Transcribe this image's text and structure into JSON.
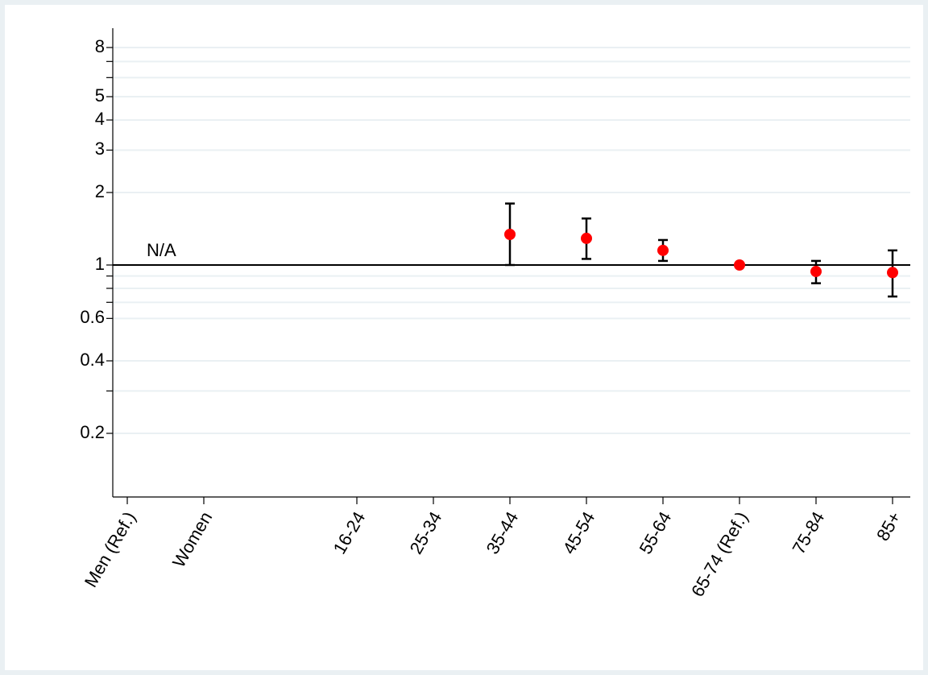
{
  "chart_data": {
    "type": "errorbar-scatter",
    "annotation": "N/A",
    "categories": [
      "Men (Ref.)",
      "Women",
      null,
      "16-24",
      "25-34",
      "35-44",
      "45-54",
      "55-64",
      "65-74 (Ref.)",
      "75-84",
      "85+"
    ],
    "values": [
      null,
      null,
      null,
      null,
      null,
      1.34,
      1.29,
      1.15,
      1.0,
      0.94,
      0.93
    ],
    "lower": [
      null,
      null,
      null,
      null,
      null,
      1.0,
      1.06,
      1.04,
      null,
      0.84,
      0.74
    ],
    "upper": [
      null,
      null,
      null,
      null,
      null,
      1.8,
      1.56,
      1.27,
      null,
      1.04,
      1.15
    ],
    "color": "#ff0000",
    "ylim": [
      0.1,
      10
    ],
    "log_y": true,
    "yticks": [
      0.2,
      0.4,
      0.6,
      1,
      2,
      3,
      4,
      5,
      8
    ],
    "yminor": [
      0.3,
      0.7,
      0.8,
      0.9,
      6,
      7
    ],
    "reference_line": 1,
    "grid": true
  }
}
